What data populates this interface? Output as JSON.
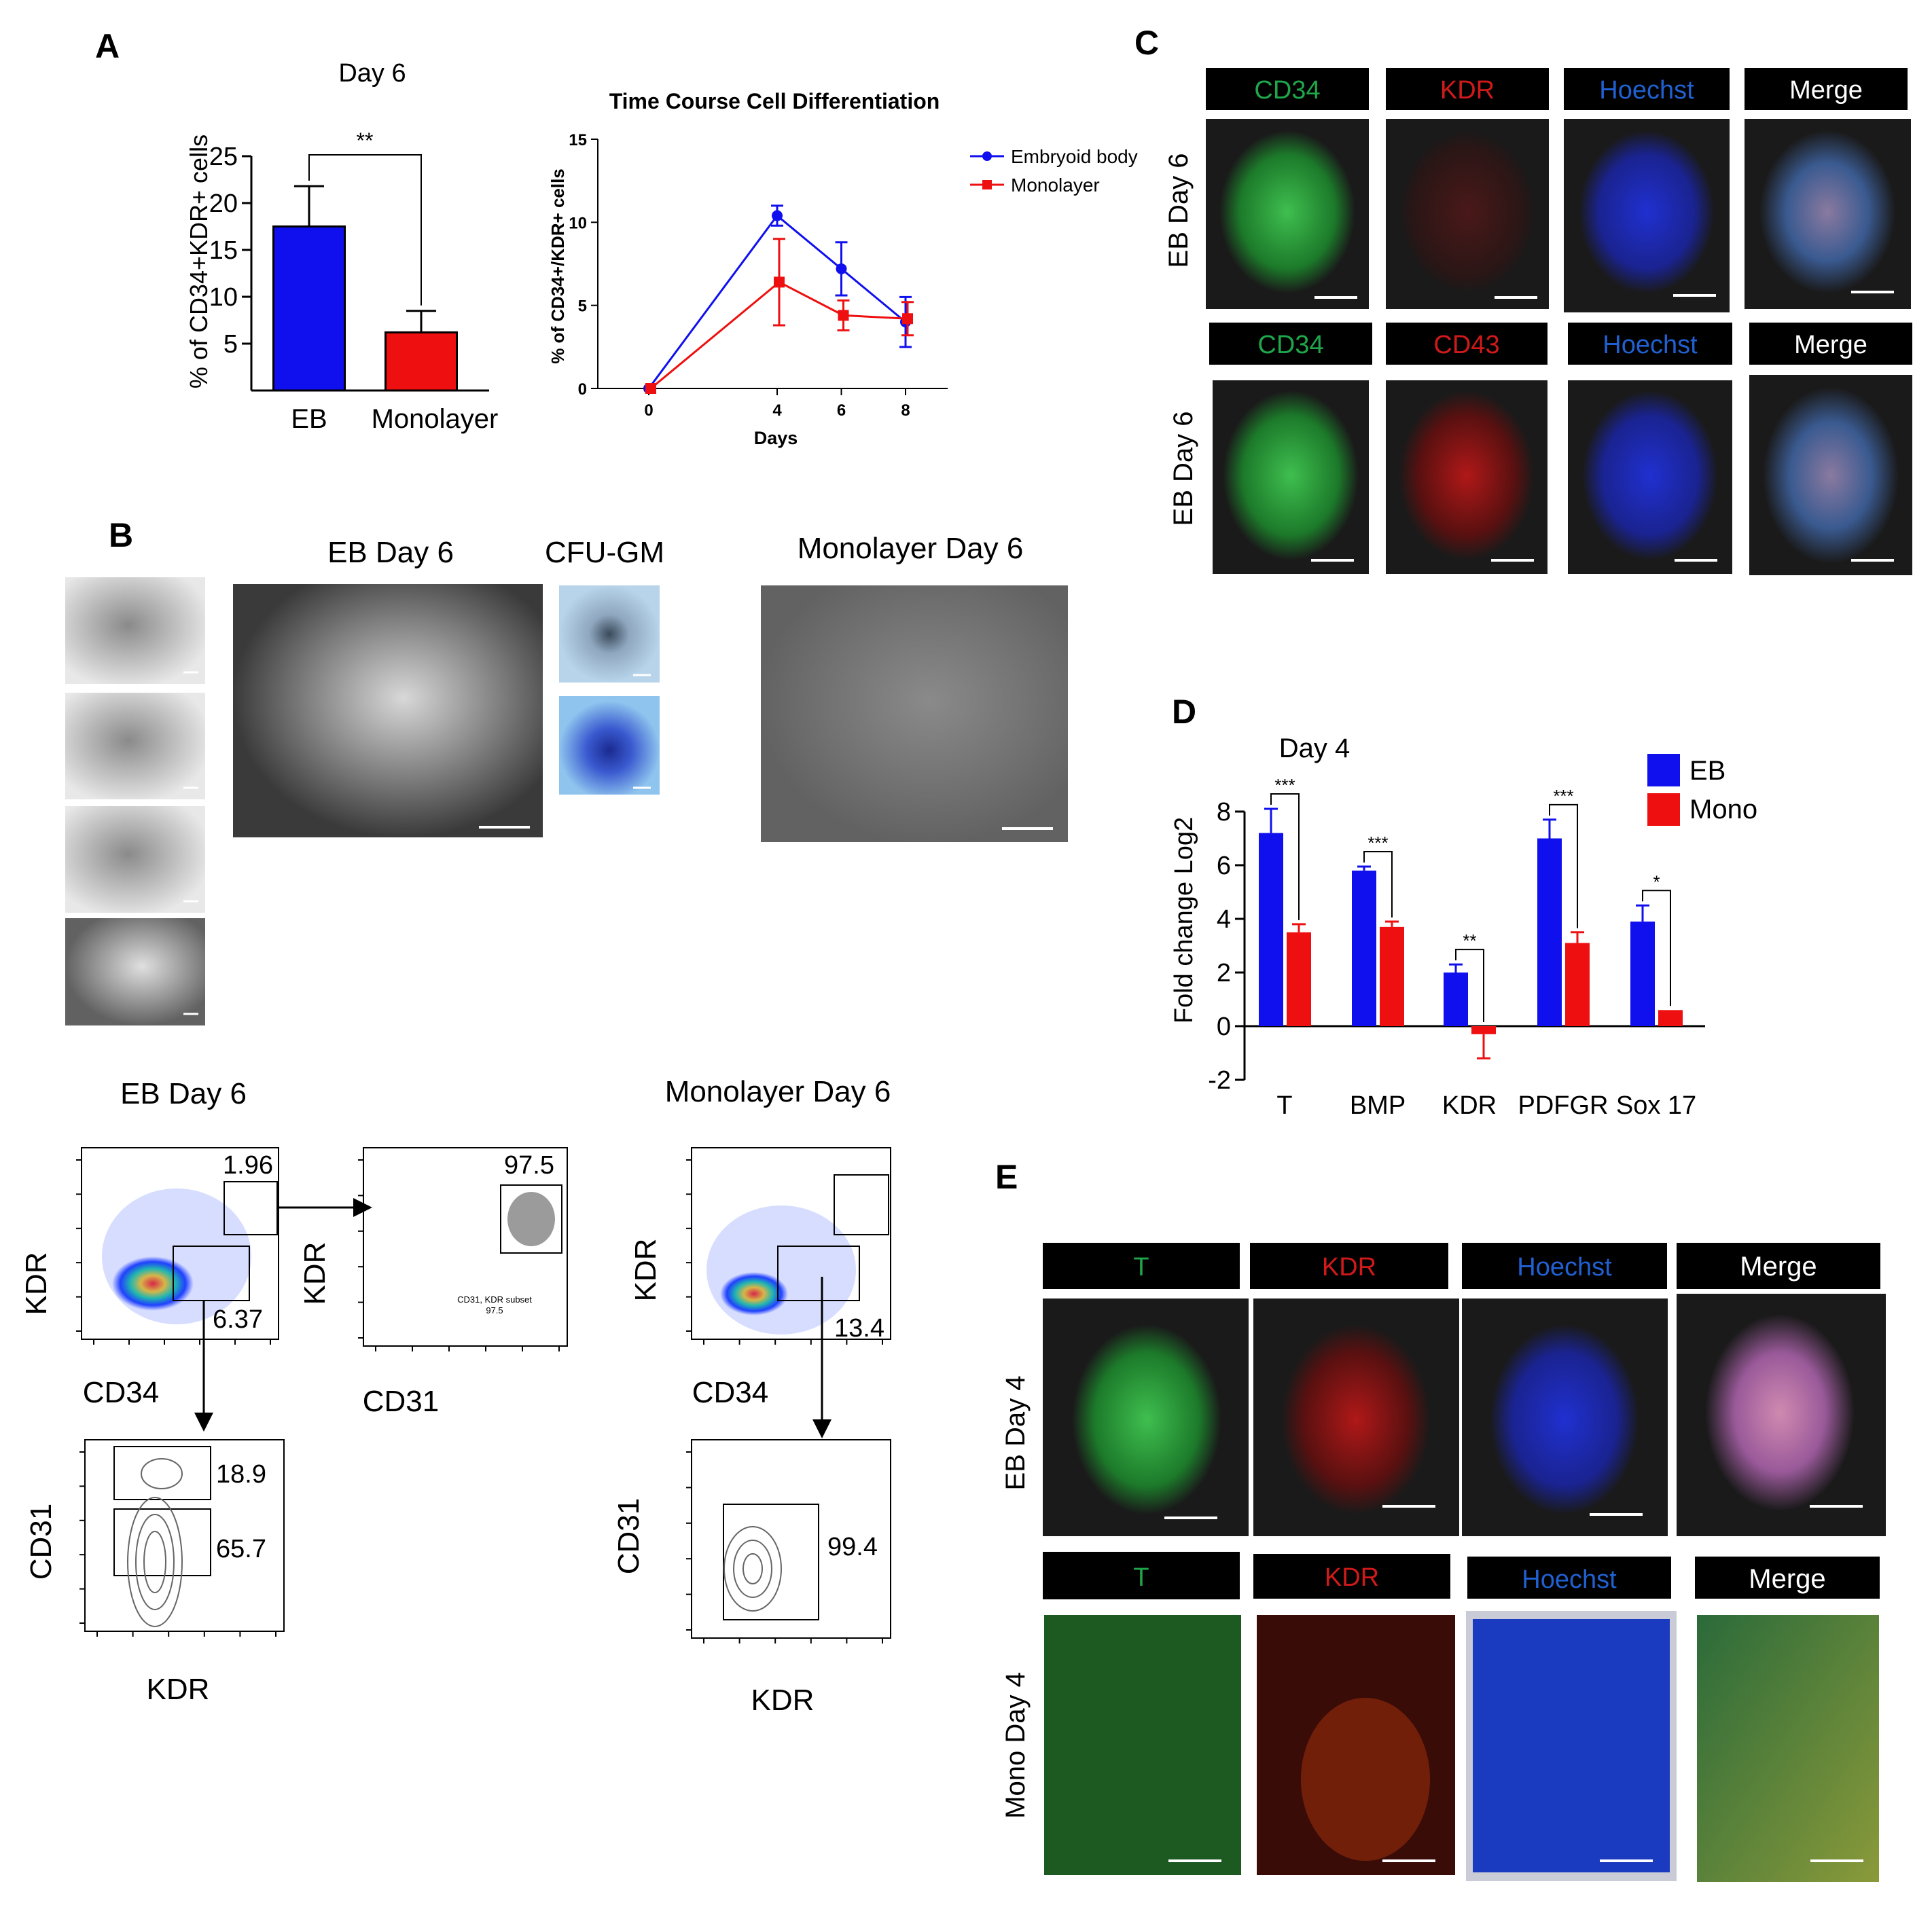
{
  "panels": {
    "A": "A",
    "B": "B",
    "C": "C",
    "D": "D",
    "E": "E"
  },
  "panel_a": {
    "bar_title": "Day 6",
    "bar_ylabel": "% of CD34+KDR+ cells",
    "bar_sig": "**",
    "line_title": "Time Course Cell Differentiation",
    "line_ylabel": "% of CD34+/KDR+ cells",
    "line_xlabel": "Days",
    "legend": [
      "Embryoid body",
      "Monolayer"
    ]
  },
  "panel_b": {
    "eb_label": "EB Day 6",
    "cfu_label": "CFU-GM",
    "mono_label": "Monolayer Day 6",
    "flow_eb_title": "EB Day 6",
    "flow_mono_title": "Monolayer Day 6",
    "axis_kdr": "KDR",
    "axis_cd34": "CD34",
    "axis_cd31": "CD31",
    "gate_values": {
      "eb_cd34kdr": "1.96",
      "eb_cd34low": "6.37",
      "eb_cd31kdr": "97.5",
      "eb_subset_note": "CD31, KDR subset",
      "eb_subset_val": "97.5",
      "eb_cd31_high": "18.9",
      "eb_cd31_mid": "65.7",
      "mono_gate": "13.4",
      "mono_cd31": "99.4"
    }
  },
  "panel_c": {
    "row1_label": "EB Day 6",
    "row2_label": "EB Day 6",
    "row1_channels": [
      "CD34",
      "KDR",
      "Hoechst",
      "Merge"
    ],
    "row2_channels": [
      "CD34",
      "CD43",
      "Hoechst",
      "Merge"
    ]
  },
  "panel_d": {
    "title": "Day 4",
    "ylabel": "Fold change Log2",
    "legend": [
      "EB",
      "Mono"
    ],
    "sig": [
      "***",
      "***",
      "**",
      "***",
      "*"
    ]
  },
  "panel_e": {
    "row1_label": "EB Day 4",
    "row2_label": "Mono Day 4",
    "row1_channels": [
      "T",
      "KDR",
      "Hoechst",
      "Merge"
    ],
    "row2_channels": [
      "T",
      "KDR",
      "Hoechst",
      "Merge"
    ]
  },
  "colors": {
    "eb": "#1010ee",
    "mono": "#ee1010",
    "green": "#1fa64a",
    "red": "#d01a1a",
    "blue": "#2060d0"
  },
  "chart_data": [
    {
      "type": "bar",
      "title": "Day 6",
      "ylabel": "% of CD34+KDR+ cells",
      "categories": [
        "EB",
        "Monolayer"
      ],
      "values": [
        17.5,
        6.2
      ],
      "errors": [
        4.3,
        2.3
      ],
      "ylim": [
        0,
        25
      ],
      "yticks": [
        5,
        10,
        15,
        20,
        25
      ]
    },
    {
      "type": "line",
      "title": "Time Course Cell Differentiation",
      "xlabel": "Days",
      "ylabel": "% of CD34+/KDR+ cells",
      "x": [
        0,
        4,
        6,
        8
      ],
      "xlim": [
        0,
        9
      ],
      "ylim": [
        0,
        15
      ],
      "yticks": [
        0,
        5,
        10,
        15
      ],
      "legend_position": "top-right",
      "series": [
        {
          "name": "Embryoid body",
          "values": [
            0,
            10.4,
            7.2,
            4.0
          ],
          "errors": [
            0,
            0.6,
            1.6,
            1.5
          ]
        },
        {
          "name": "Monolayer",
          "values": [
            0,
            6.4,
            4.4,
            4.2
          ],
          "errors": [
            0,
            2.6,
            0.9,
            1.0
          ]
        }
      ]
    },
    {
      "type": "bar",
      "title": "Day 4",
      "ylabel": "Fold change Log2",
      "categories": [
        "T",
        "BMP",
        "KDR",
        "PDFGR",
        "Sox 17"
      ],
      "ylim": [
        -2,
        8
      ],
      "yticks": [
        -2,
        0,
        2,
        4,
        6,
        8
      ],
      "legend_position": "top-right",
      "series": [
        {
          "name": "EB",
          "values": [
            7.2,
            5.8,
            2.0,
            7.0,
            3.9
          ],
          "errors": [
            0.9,
            0.15,
            0.3,
            0.7,
            0.6
          ]
        },
        {
          "name": "Mono",
          "values": [
            3.5,
            3.7,
            -0.3,
            3.1,
            0.6
          ],
          "errors": [
            0.3,
            0.2,
            0.9,
            0.4,
            0
          ]
        }
      ]
    }
  ]
}
